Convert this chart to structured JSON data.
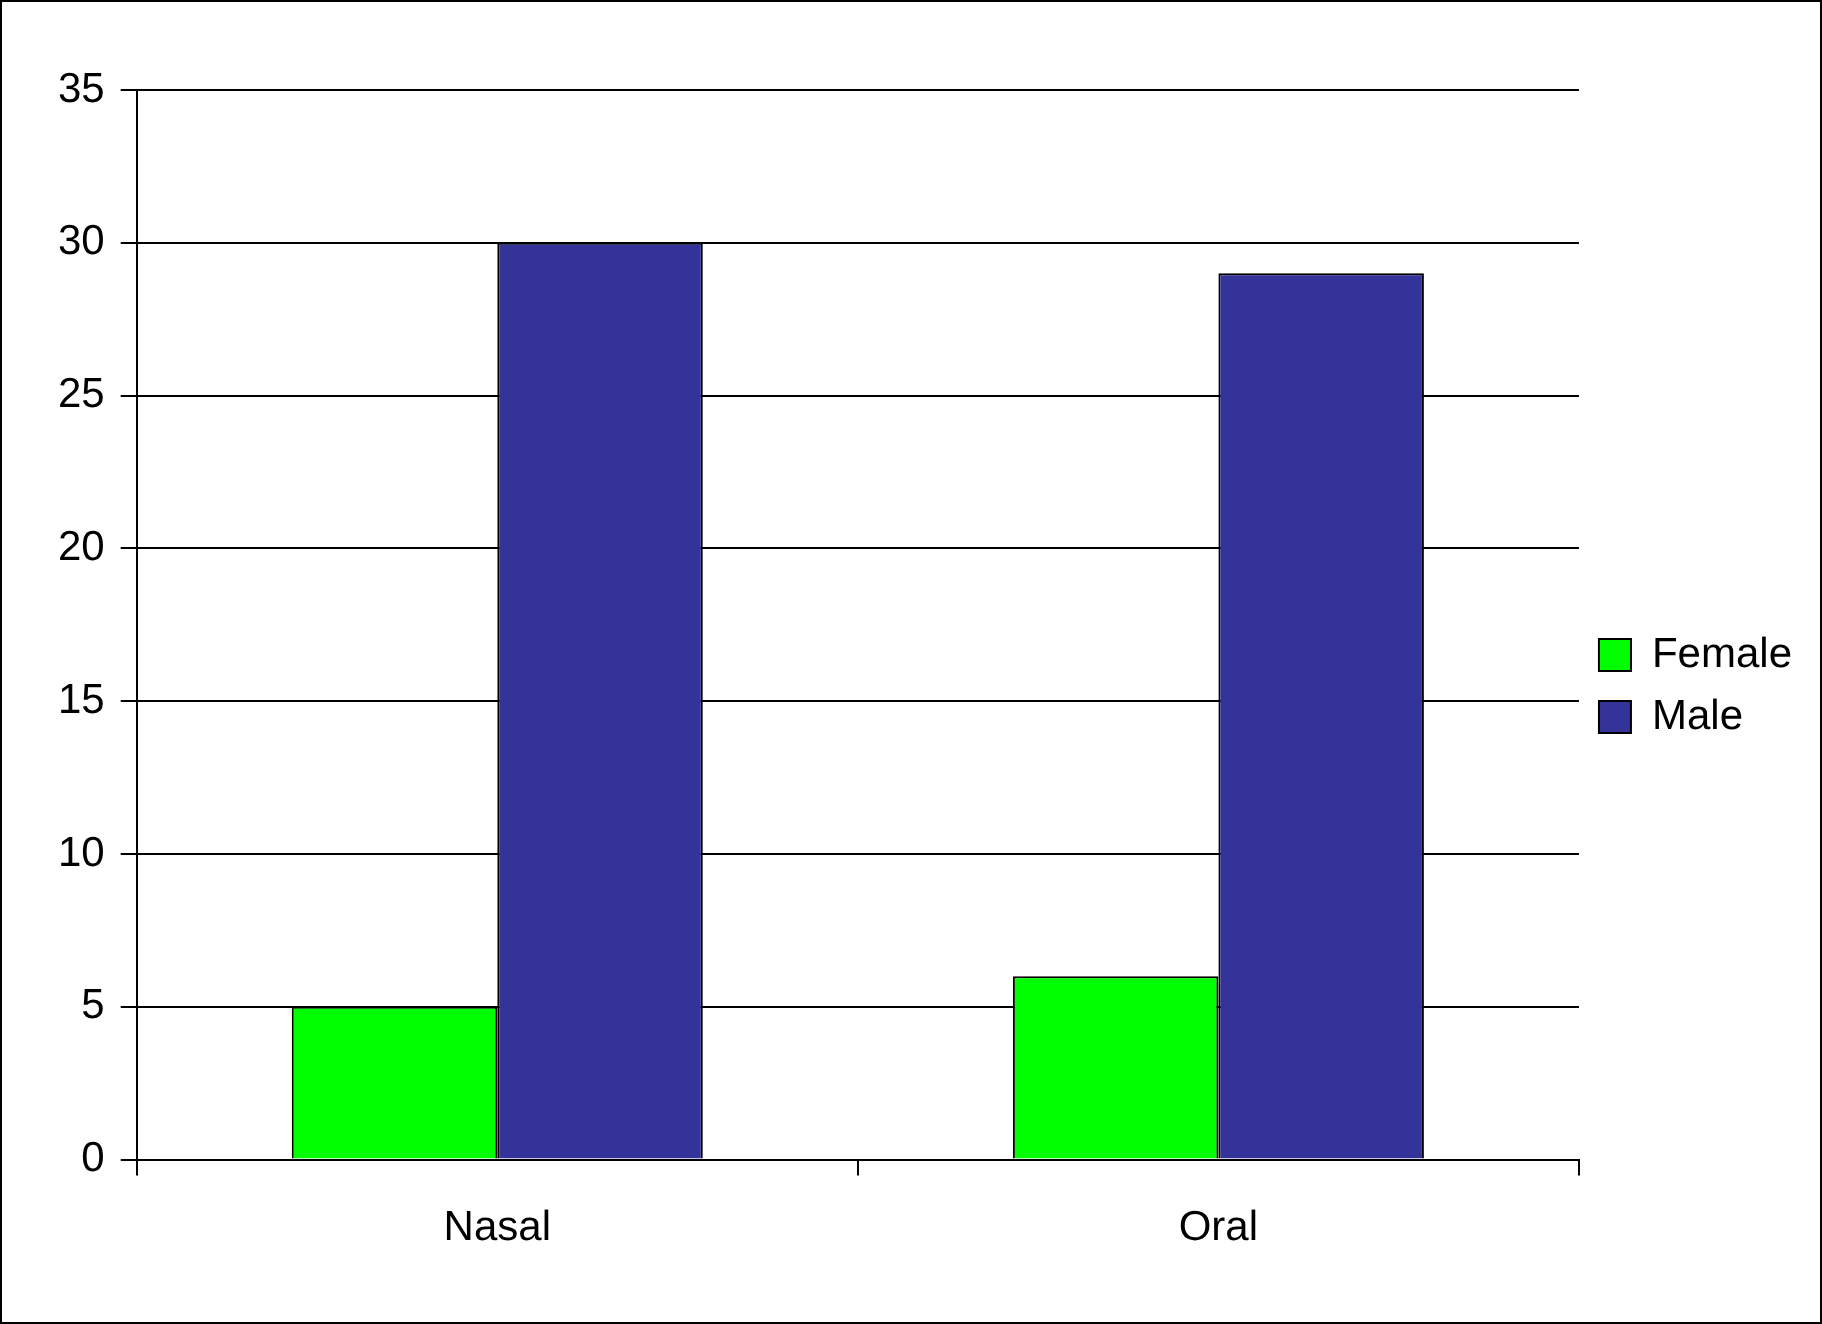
{
  "chart_data": {
    "type": "bar",
    "categories": [
      "Nasal",
      "Oral"
    ],
    "series": [
      {
        "name": "Female",
        "color": "#00ff00",
        "values": [
          5,
          6
        ]
      },
      {
        "name": "Male",
        "color": "#333399",
        "values": [
          30,
          29
        ]
      }
    ],
    "ylim": [
      0,
      35
    ],
    "yticks": [
      0,
      5,
      10,
      15,
      20,
      25,
      30,
      35
    ],
    "grid": "y",
    "legend": "right"
  }
}
